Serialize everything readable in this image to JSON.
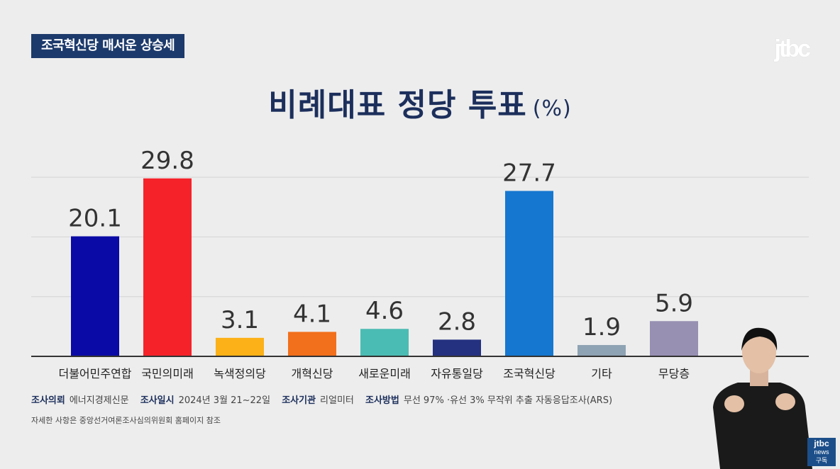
{
  "header": {
    "headline": "조국혁신당 매서운 상승세",
    "logo": "jtbc"
  },
  "chart_data": {
    "type": "bar",
    "title": "비례대표 정당 투표",
    "unit": "(%)",
    "categories": [
      "더불어민주연합",
      "국민의미래",
      "녹색정의당",
      "개혁신당",
      "새로운미래",
      "자유통일당",
      "조국혁신당",
      "기타",
      "무당층"
    ],
    "values": [
      20.1,
      29.8,
      3.1,
      4.1,
      4.6,
      2.8,
      27.7,
      1.9,
      5.9
    ],
    "value_labels": [
      "20.1",
      "29.8",
      "3.1",
      "4.1",
      "4.6",
      "2.8",
      "27.7",
      "1.9",
      "5.9"
    ],
    "colors": [
      "#0a0aa6",
      "#f5222a",
      "#fbb117",
      "#f26f1b",
      "#4bbcb4",
      "#243080",
      "#1577d0",
      "#8ea3b3",
      "#9890b3"
    ],
    "ylim": [
      0,
      30
    ],
    "gridlines": [
      10,
      20,
      30
    ],
    "xlabel": "",
    "ylabel": ""
  },
  "footer": {
    "items": [
      {
        "key": "조사의뢰",
        "value": "에너지경제신문"
      },
      {
        "key": "조사일시",
        "value": "2024년 3월 21~22일"
      },
      {
        "key": "조사기관",
        "value": "리얼미터"
      },
      {
        "key": "조사방법",
        "value": "무선 97% ·유선 3% 무작위 추출 자동응답조사(ARS)"
      }
    ],
    "note": "자세한 사항은 중앙선거여론조사심의위원회 홈페이지 참조"
  },
  "badge": {
    "line1": "jtbc",
    "line2": "news",
    "line3": "구독"
  }
}
